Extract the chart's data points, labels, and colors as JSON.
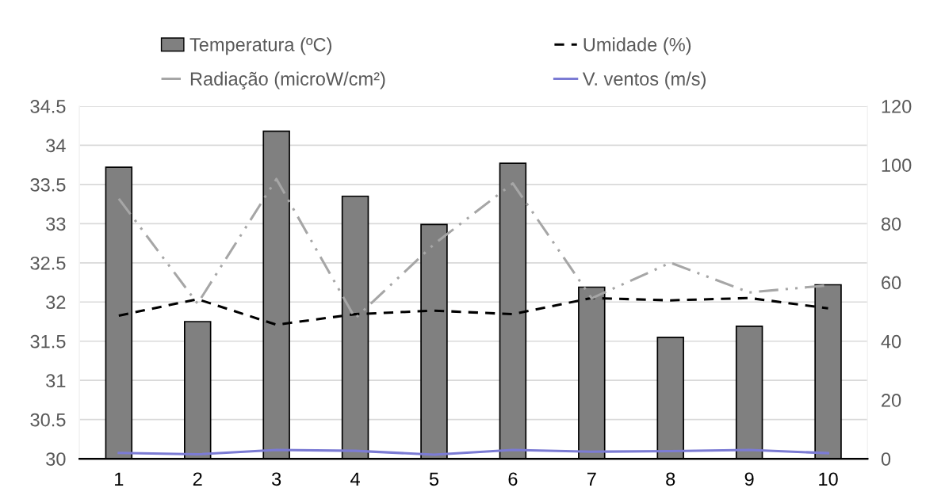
{
  "chart_data": {
    "type": "bar",
    "categories": [
      "1",
      "2",
      "3",
      "4",
      "5",
      "6",
      "7",
      "8",
      "9",
      "10"
    ],
    "series": [
      {
        "name": "Temperatura (ºC)",
        "color": "#808080",
        "values": [
          33.72,
          31.75,
          34.18,
          33.35,
          32.99,
          33.77,
          32.19,
          31.55,
          31.69,
          32.22
        ]
      },
      {
        "name": "Umidade (%)",
        "type": "line",
        "axis": "y2",
        "color": "#000000",
        "line_style": "dashed",
        "values": [
          48.7,
          54.3,
          45.6,
          49.2,
          50.4,
          49.2,
          54.7,
          53.9,
          54.7,
          51.2
        ]
      },
      {
        "name": "Radiação (microW/cm²)",
        "type": "line",
        "axis": "y2",
        "color": "#a6a6a6",
        "line_style": "dashdot",
        "values": [
          88.5,
          52.8,
          95.2,
          47.8,
          73,
          93.7,
          54.6,
          66.7,
          56.6,
          59
        ]
      },
      {
        "name": "V. ventos (m/s)",
        "type": "line",
        "axis": "y2",
        "color": "#7b7bd4",
        "line_style": "solid",
        "values": [
          2.0,
          1.5,
          3.0,
          2.7,
          1.4,
          3.0,
          2.4,
          2.6,
          3.0,
          1.9
        ]
      }
    ],
    "ylim": [
      30,
      34.5
    ],
    "yticks": [
      30,
      30.5,
      31,
      31.5,
      32,
      32.5,
      33,
      33.5,
      34,
      34.5
    ],
    "y2lim": [
      0,
      120
    ],
    "y2ticks": [
      0,
      20,
      40,
      60,
      80,
      100,
      120
    ],
    "grid": "y",
    "legend": "top",
    "marker": "none"
  }
}
